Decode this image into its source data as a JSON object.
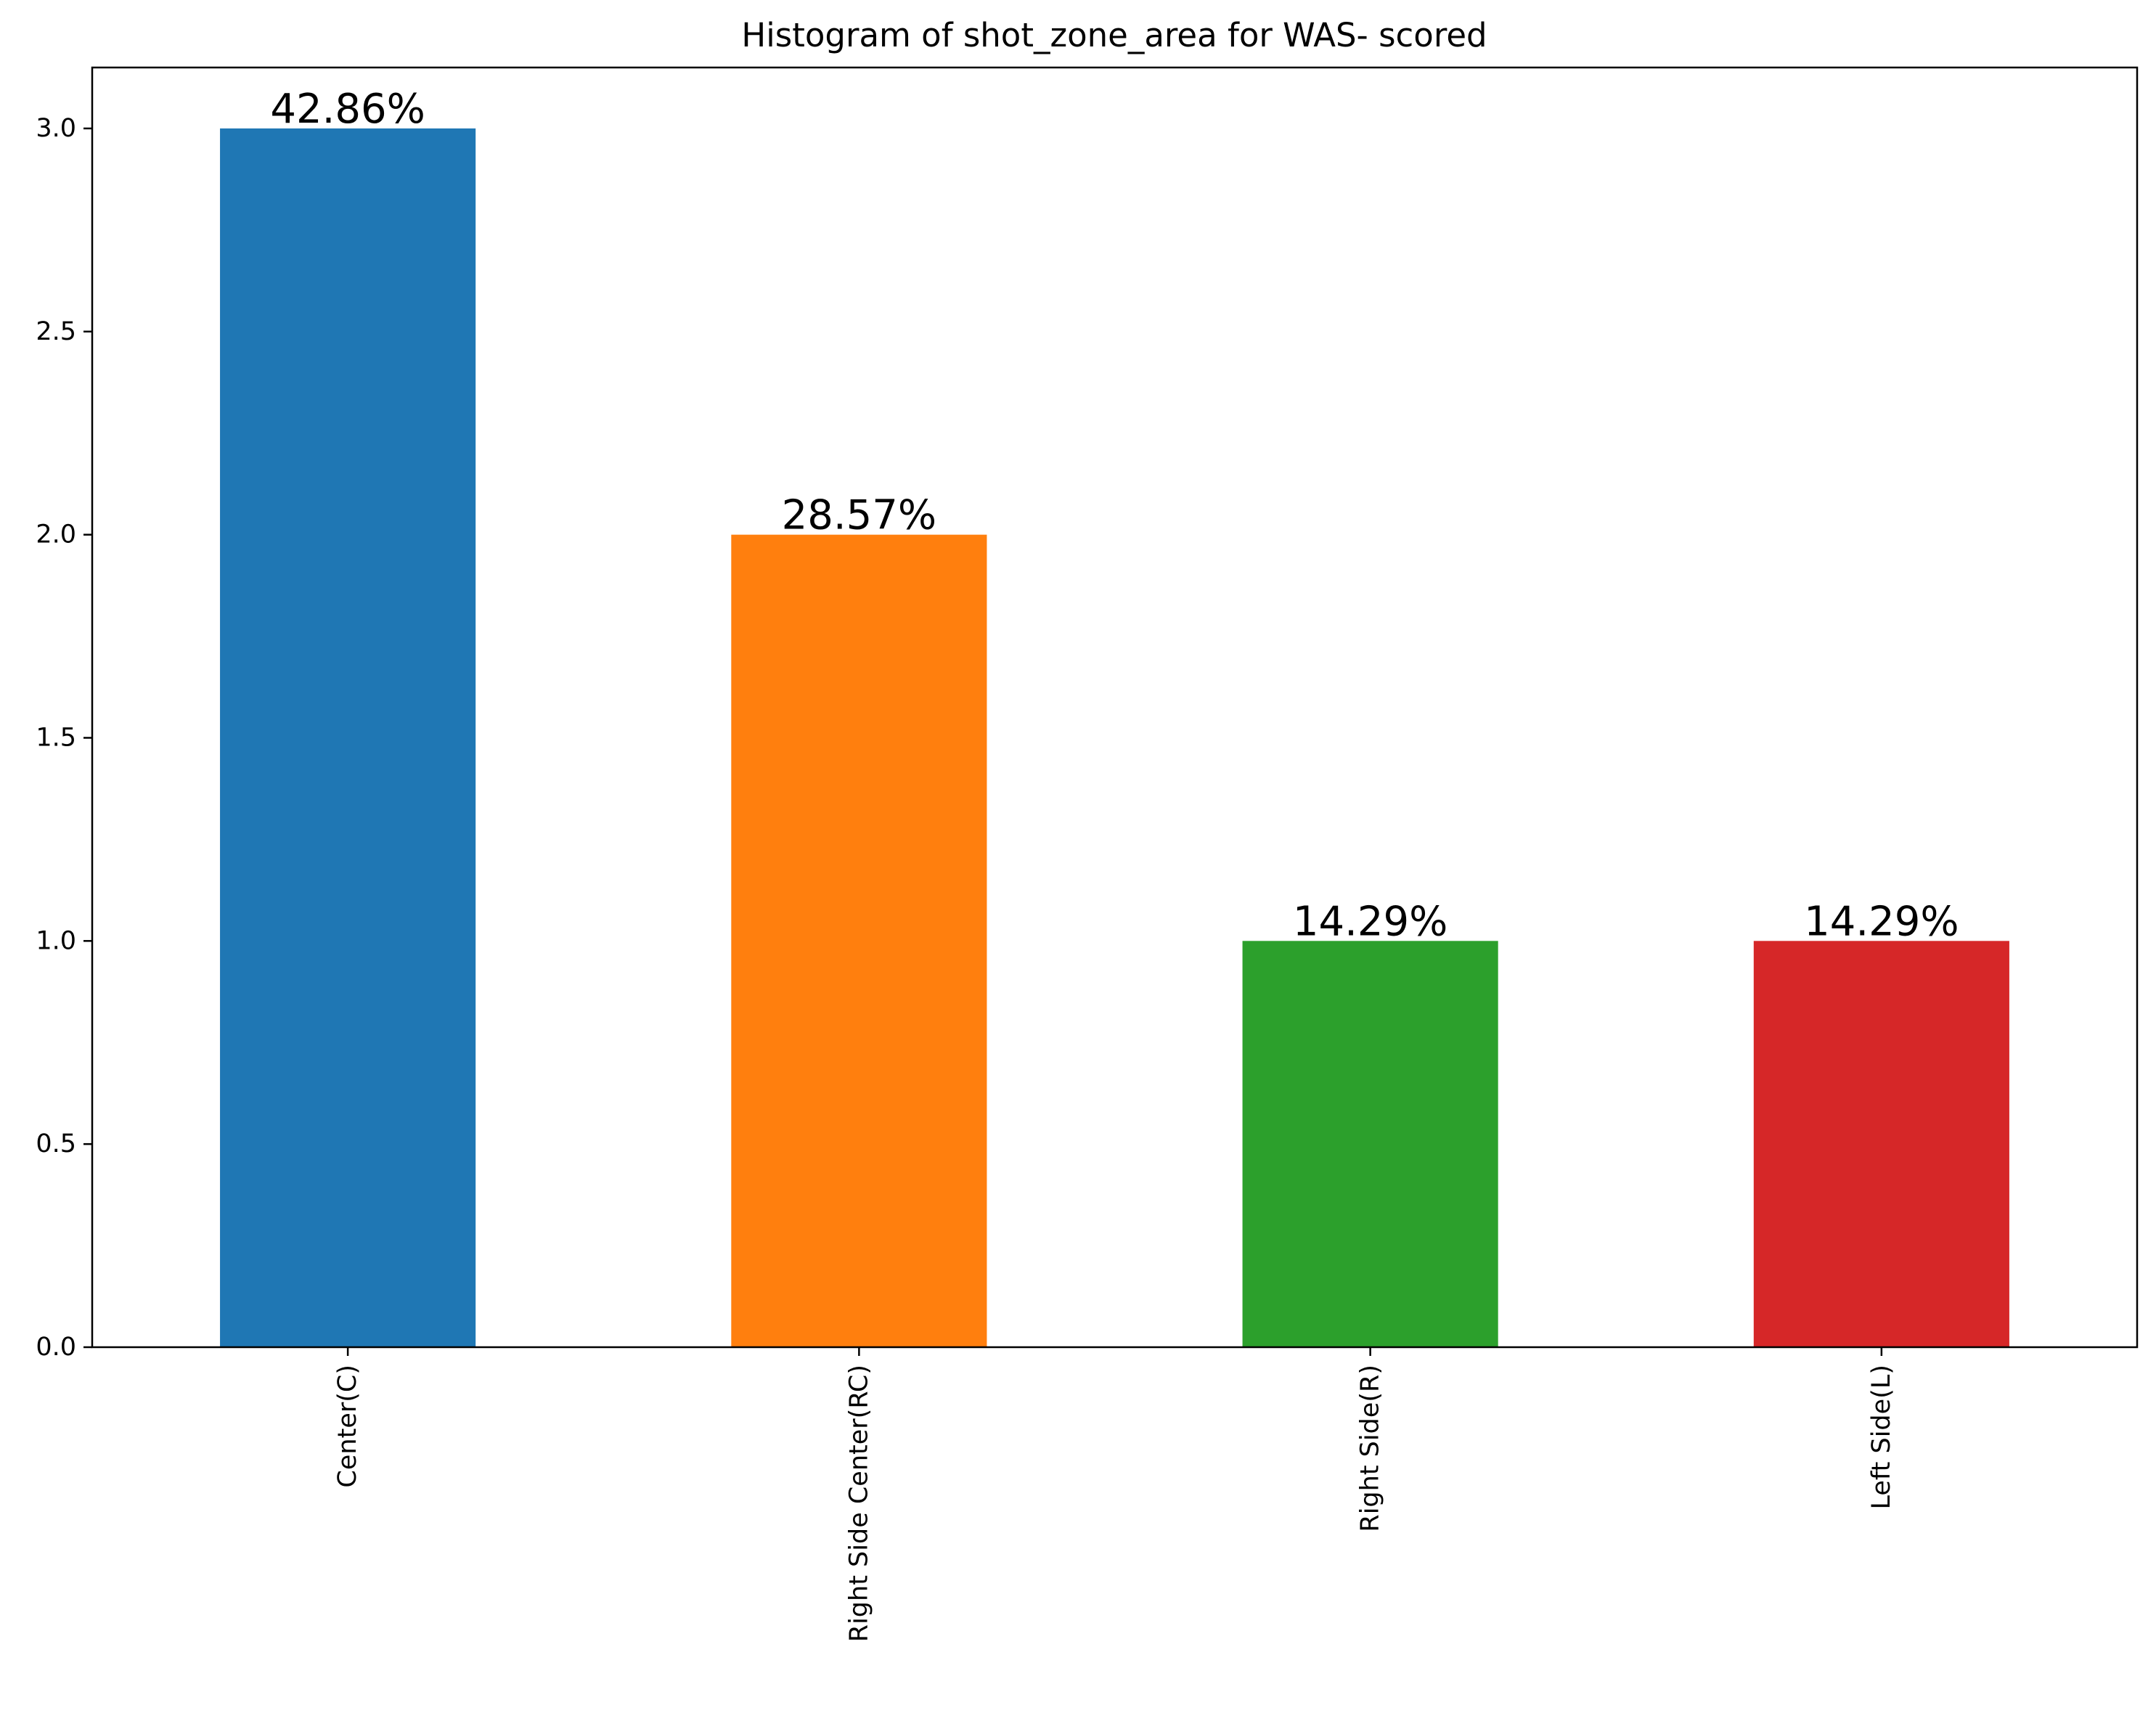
{
  "chart_data": {
    "type": "bar",
    "title": "Histogram of shot_zone_area for WAS- scored",
    "xlabel": "",
    "ylabel": "",
    "categories": [
      "Center(C)",
      "Right Side Center(RC)",
      "Right Side(R)",
      "Left Side(L)"
    ],
    "values": [
      3,
      2,
      1,
      1
    ],
    "data_labels": [
      "42.86%",
      "28.57%",
      "14.29%",
      "14.29%"
    ],
    "colors": [
      "#1f77b4",
      "#ff7f0e",
      "#2ca02c",
      "#d62728"
    ],
    "ylim": [
      0,
      3.15
    ],
    "yticks": [
      0,
      0.5,
      1,
      1.5,
      2,
      2.5,
      3
    ],
    "ytick_labels": [
      "0.0",
      "0.5",
      "1.0",
      "1.5",
      "2.0",
      "2.5",
      "3.0"
    ],
    "xtick_rotation": 90,
    "grid": false,
    "legend": "none"
  }
}
